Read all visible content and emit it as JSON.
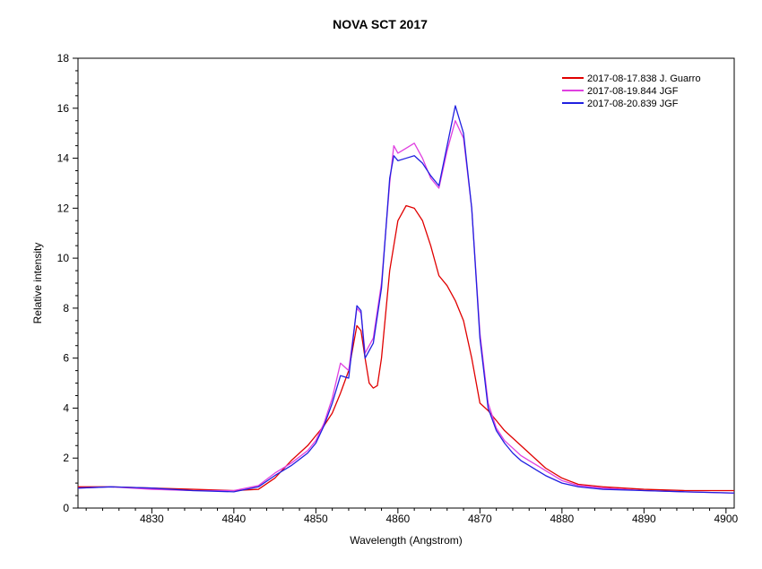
{
  "chart_data": {
    "type": "line",
    "title": "NOVA SCT 2017",
    "xlabel": "Wavelength (Angstrom)",
    "ylabel": "Relative intensity",
    "xlim": [
      4821,
      4901
    ],
    "ylim": [
      0,
      18
    ],
    "x_ticks": [
      4830,
      4840,
      4850,
      4860,
      4870,
      4880,
      4890,
      4900
    ],
    "y_ticks": [
      0,
      2,
      4,
      6,
      8,
      10,
      12,
      14,
      16,
      18
    ],
    "grid": false,
    "legend_position": "top-right",
    "series": [
      {
        "name": "2017-08-17.838  J. Guarro",
        "color": "#e00000",
        "x": [
          4821,
          4825,
          4830,
          4835,
          4840,
          4843,
          4845,
          4847,
          4849,
          4850,
          4851,
          4852,
          4853,
          4854,
          4855,
          4855.5,
          4856,
          4856.5,
          4857,
          4857.5,
          4858,
          4859,
          4860,
          4861,
          4862,
          4863,
          4864,
          4865,
          4866,
          4867,
          4868,
          4869,
          4870,
          4871,
          4872,
          4873,
          4874,
          4875,
          4876,
          4877,
          4878,
          4880,
          4882,
          4885,
          4890,
          4895,
          4901
        ],
        "y": [
          0.85,
          0.85,
          0.8,
          0.75,
          0.7,
          0.75,
          1.2,
          1.9,
          2.5,
          2.9,
          3.3,
          3.8,
          4.6,
          5.5,
          7.3,
          7.1,
          6.0,
          5.0,
          4.8,
          4.9,
          6.0,
          9.5,
          11.5,
          12.1,
          12.0,
          11.5,
          10.5,
          9.3,
          8.9,
          8.3,
          7.5,
          6.0,
          4.2,
          3.9,
          3.5,
          3.1,
          2.8,
          2.5,
          2.2,
          1.9,
          1.6,
          1.2,
          0.95,
          0.85,
          0.75,
          0.7,
          0.7
        ]
      },
      {
        "name": "2017-08-19.844  JGF",
        "color": "#e040e0",
        "x": [
          4821,
          4825,
          4830,
          4835,
          4840,
          4843,
          4845,
          4847,
          4849,
          4850,
          4851,
          4852,
          4853,
          4854,
          4855,
          4855.5,
          4856,
          4857,
          4858,
          4859,
          4859.5,
          4860,
          4861,
          4862,
          4863,
          4864,
          4865,
          4866,
          4867,
          4868,
          4869,
          4870,
          4871,
          4872,
          4873,
          4874,
          4875,
          4876,
          4877,
          4878,
          4880,
          4882,
          4885,
          4890,
          4895,
          4901
        ],
        "y": [
          0.8,
          0.85,
          0.75,
          0.7,
          0.7,
          0.9,
          1.4,
          1.8,
          2.3,
          2.7,
          3.4,
          4.4,
          5.8,
          5.5,
          8.0,
          7.8,
          6.2,
          6.8,
          9.0,
          13.0,
          14.5,
          14.2,
          14.4,
          14.6,
          14.0,
          13.2,
          12.8,
          14.3,
          15.5,
          14.8,
          12.0,
          7.0,
          4.2,
          3.2,
          2.7,
          2.4,
          2.1,
          1.9,
          1.7,
          1.5,
          1.1,
          0.9,
          0.8,
          0.7,
          0.65,
          0.6
        ]
      },
      {
        "name": "2017-08-20.839  JGF",
        "color": "#2020e0",
        "x": [
          4821,
          4825,
          4830,
          4835,
          4840,
          4843,
          4845,
          4847,
          4849,
          4850,
          4851,
          4852,
          4853,
          4854,
          4855,
          4855.5,
          4856,
          4857,
          4858,
          4859,
          4859.5,
          4860,
          4861,
          4862,
          4863,
          4864,
          4865,
          4866,
          4867,
          4868,
          4869,
          4870,
          4871,
          4872,
          4873,
          4874,
          4875,
          4876,
          4877,
          4878,
          4880,
          4882,
          4885,
          4890,
          4895,
          4901
        ],
        "y": [
          0.8,
          0.85,
          0.8,
          0.7,
          0.65,
          0.85,
          1.3,
          1.7,
          2.2,
          2.6,
          3.3,
          4.2,
          5.3,
          5.2,
          8.1,
          7.9,
          6.0,
          6.6,
          8.8,
          13.2,
          14.1,
          13.9,
          14.0,
          14.1,
          13.8,
          13.3,
          12.9,
          14.5,
          16.1,
          15.0,
          12.0,
          6.8,
          4.0,
          3.1,
          2.6,
          2.2,
          1.9,
          1.7,
          1.5,
          1.3,
          1.0,
          0.85,
          0.75,
          0.7,
          0.65,
          0.6
        ]
      }
    ]
  }
}
